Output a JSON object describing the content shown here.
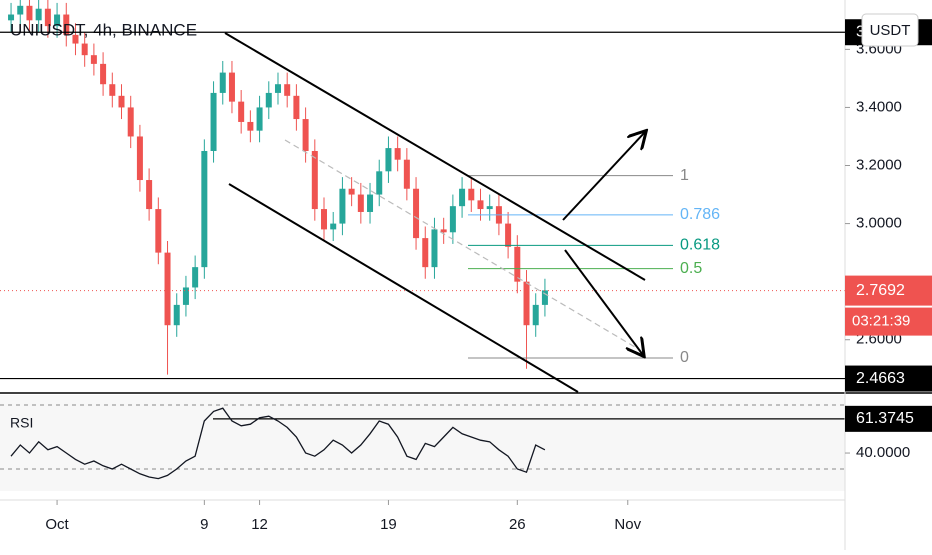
{
  "chart_data": [
    {
      "type": "candlestick",
      "title": "UNIUSDT, 4h, BINANCE",
      "currency": "USDT",
      "x": [
        -1.5,
        -1,
        -0.5,
        0,
        0.5,
        1,
        1.5,
        2,
        2.5,
        3,
        3.5,
        4,
        4.5,
        5,
        5.5,
        6,
        6.5,
        7,
        7.5,
        8,
        8.5,
        9,
        9.5,
        10,
        10.5,
        11,
        11.5,
        12,
        12.5,
        13,
        13.5,
        14,
        14.5,
        15,
        15.5,
        16,
        16.5,
        17,
        17.5,
        18,
        18.5,
        19,
        19.5,
        20,
        20.5,
        21,
        21.5,
        22,
        22.5,
        23,
        23.5,
        24,
        24.5,
        25,
        25.5,
        26,
        26.5,
        27,
        27.5
      ],
      "open": [
        3.7,
        3.72,
        3.75,
        3.7,
        3.74,
        3.68,
        3.72,
        3.65,
        3.62,
        3.58,
        3.55,
        3.48,
        3.44,
        3.4,
        3.3,
        3.15,
        3.05,
        2.9,
        2.65,
        2.72,
        2.78,
        2.85,
        3.25,
        3.45,
        3.52,
        3.42,
        3.35,
        3.32,
        3.4,
        3.45,
        3.48,
        3.44,
        3.36,
        3.25,
        3.05,
        2.98,
        3.0,
        3.12,
        3.1,
        3.04,
        3.1,
        3.18,
        3.26,
        3.22,
        3.12,
        2.95,
        2.85,
        2.98,
        2.97,
        3.06,
        3.12,
        3.08,
        3.05,
        3.06,
        3.0,
        2.92,
        2.8,
        2.65,
        2.72
      ],
      "high": [
        3.76,
        3.79,
        3.79,
        3.78,
        3.78,
        3.76,
        3.76,
        3.69,
        3.66,
        3.62,
        3.59,
        3.52,
        3.48,
        3.44,
        3.34,
        3.19,
        3.09,
        2.94,
        2.76,
        2.82,
        2.89,
        3.29,
        3.49,
        3.56,
        3.56,
        3.46,
        3.39,
        3.44,
        3.49,
        3.52,
        3.52,
        3.48,
        3.4,
        3.29,
        3.09,
        3.04,
        3.16,
        3.16,
        3.14,
        3.14,
        3.22,
        3.3,
        3.3,
        3.26,
        3.16,
        2.99,
        3.02,
        3.02,
        3.1,
        3.16,
        3.16,
        3.12,
        3.1,
        3.1,
        3.04,
        2.96,
        2.84,
        2.76,
        2.81
      ],
      "low": [
        3.66,
        3.68,
        3.66,
        3.66,
        3.64,
        3.64,
        3.61,
        3.58,
        3.54,
        3.51,
        3.44,
        3.4,
        3.36,
        3.26,
        3.11,
        3.01,
        2.86,
        2.48,
        2.61,
        2.68,
        2.74,
        2.81,
        3.21,
        3.41,
        3.38,
        3.31,
        3.28,
        3.28,
        3.36,
        3.41,
        3.4,
        3.32,
        3.21,
        3.01,
        2.94,
        2.94,
        2.96,
        3.06,
        3.0,
        3.0,
        3.06,
        3.14,
        3.18,
        3.08,
        2.91,
        2.81,
        2.81,
        2.93,
        2.93,
        3.02,
        3.04,
        3.01,
        3.01,
        2.96,
        2.88,
        2.76,
        2.5,
        2.61,
        2.68
      ],
      "close": [
        3.72,
        3.75,
        3.7,
        3.74,
        3.68,
        3.72,
        3.65,
        3.62,
        3.58,
        3.55,
        3.48,
        3.44,
        3.4,
        3.3,
        3.15,
        3.05,
        2.9,
        2.65,
        2.72,
        2.78,
        2.85,
        3.25,
        3.45,
        3.52,
        3.42,
        3.35,
        3.32,
        3.4,
        3.45,
        3.48,
        3.44,
        3.36,
        3.25,
        3.05,
        2.98,
        3.0,
        3.12,
        3.1,
        3.04,
        3.1,
        3.18,
        3.26,
        3.22,
        3.12,
        2.95,
        2.85,
        2.98,
        2.97,
        3.06,
        3.12,
        3.08,
        3.05,
        3.06,
        3.0,
        2.92,
        2.8,
        2.65,
        2.72,
        2.77
      ],
      "up_color": "#26a69a",
      "down_color": "#ef5350",
      "xlim": [
        -2.1,
        43.8
      ],
      "ylim": [
        2.42,
        3.77
      ],
      "yticks": [
        {
          "value": 2.6,
          "label": "2.6000"
        },
        {
          "value": 3.0,
          "label": "3.0000"
        },
        {
          "value": 3.2,
          "label": "3.2000"
        },
        {
          "value": 3.4,
          "label": "3.4000"
        },
        {
          "value": 3.6,
          "label": "3.6000"
        }
      ],
      "last_price": 2.7692,
      "countdown": "03:21:39",
      "hlines": [
        3.659,
        2.4663
      ],
      "fib_levels": [
        {
          "label": "1",
          "value": 3.165,
          "color": "#888888"
        },
        {
          "label": "0.786",
          "value": 3.03,
          "color": "#64b5f6"
        },
        {
          "label": "0.618",
          "value": 2.925,
          "color": "#089981"
        },
        {
          "label": "0.5",
          "value": 2.845,
          "color": "#4caf50"
        },
        {
          "label": "0",
          "value": 2.537,
          "color": "#888888"
        }
      ]
    },
    {
      "type": "line",
      "title": "RSI",
      "color": "#131722",
      "x": [
        -1.5,
        -1,
        -0.5,
        0,
        0.5,
        1,
        1.5,
        2,
        2.5,
        3,
        3.5,
        4,
        4.5,
        5,
        5.5,
        6,
        6.5,
        7,
        7.5,
        8,
        8.5,
        9,
        9.5,
        10,
        10.5,
        11,
        11.5,
        12,
        12.5,
        13,
        13.5,
        14,
        14.5,
        15,
        15.5,
        16,
        16.5,
        17,
        17.5,
        18,
        18.5,
        19,
        19.5,
        20,
        20.5,
        21,
        21.5,
        22,
        22.5,
        23,
        23.5,
        24,
        24.5,
        25,
        25.5,
        26,
        26.5,
        27,
        27.5
      ],
      "values": [
        38,
        45,
        40,
        47,
        42,
        44,
        40,
        36,
        33,
        35,
        32,
        30,
        33,
        30,
        27,
        25,
        24,
        26,
        30,
        35,
        38,
        60,
        66,
        68,
        60,
        57,
        58,
        62,
        63,
        60,
        56,
        50,
        40,
        38,
        42,
        48,
        45,
        40,
        45,
        52,
        60,
        58,
        50,
        38,
        36,
        46,
        44,
        50,
        56,
        52,
        50,
        48,
        47,
        42,
        38,
        30,
        28,
        45,
        42
      ],
      "xlim": [
        -2.1,
        43.8
      ],
      "ylim": [
        16.9,
        74.4
      ],
      "xticks": [
        {
          "value": 1,
          "label": "Oct"
        },
        12,
        19,
        26,
        {
          "value": 32,
          "label": "Nov"
        },
        9
      ],
      "yticks": [
        {
          "value": 40,
          "label": "40.0000"
        }
      ],
      "bands": [
        30,
        70
      ],
      "level": 61.3745
    }
  ]
}
